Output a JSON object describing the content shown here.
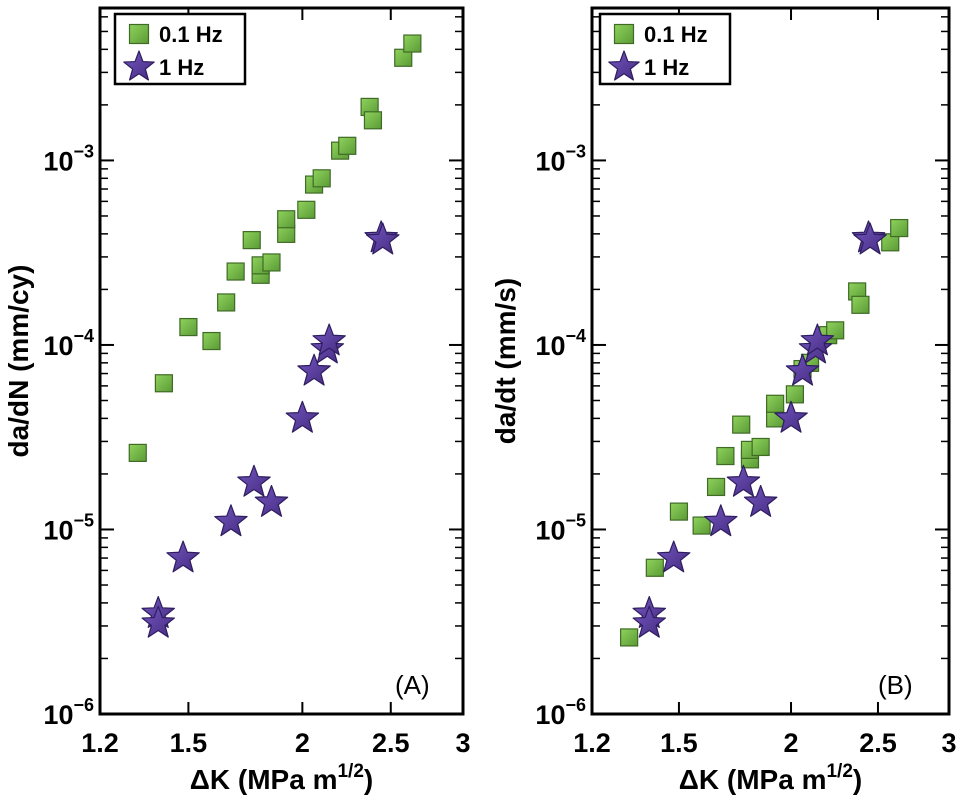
{
  "colors": {
    "green_fill": "#6fb443",
    "green_edge": "#3f6b26",
    "star_fill": "#5a3d9a",
    "star_edge": "#2e1d5f",
    "axis": "#000000"
  },
  "chart_data": [
    {
      "type": "scatter",
      "panel_label": "(A)",
      "xscale": "log",
      "yscale": "log",
      "xlim": [
        1.2,
        3
      ],
      "ylim": [
        1e-06,
        0.0067
      ],
      "xticks": [
        1.2,
        1.5,
        2,
        2.5,
        3
      ],
      "xtick_labels": [
        "1.2",
        "1.5",
        "2",
        "2.5",
        "3"
      ],
      "ytick_labels": [
        {
          "value": 1e-06,
          "base": "10",
          "exp": "−6"
        },
        {
          "value": 1e-05,
          "base": "10",
          "exp": "−5"
        },
        {
          "value": 0.0001,
          "base": "10",
          "exp": "−4"
        },
        {
          "value": 0.001,
          "base": "10",
          "exp": "−3"
        }
      ],
      "xlabel": {
        "prefix": "ΔK (MPa m",
        "sup": "1/2",
        "suffix": ")"
      },
      "ylabel": "da/dN (mm/cy)",
      "legend": [
        {
          "label": "0.1 Hz",
          "marker": "square"
        },
        {
          "label": "1 Hz",
          "marker": "star"
        }
      ],
      "series": [
        {
          "name": "0.1 Hz",
          "marker": "square",
          "points": [
            [
              1.32,
              2.6e-05
            ],
            [
              1.41,
              6.2e-05
            ],
            [
              1.5,
              0.000125
            ],
            [
              1.59,
              0.000105
            ],
            [
              1.65,
              0.00017
            ],
            [
              1.69,
              0.00025
            ],
            [
              1.76,
              0.00037
            ],
            [
              1.8,
              0.00024
            ],
            [
              1.8,
              0.00027
            ],
            [
              1.85,
              0.00028
            ],
            [
              1.92,
              0.0004
            ],
            [
              1.92,
              0.00048
            ],
            [
              2.02,
              0.00054
            ],
            [
              2.06,
              0.00074
            ],
            [
              2.1,
              0.0008
            ],
            [
              2.2,
              0.00113
            ],
            [
              2.24,
              0.0012
            ],
            [
              2.37,
              0.00195
            ],
            [
              2.39,
              0.00165
            ],
            [
              2.58,
              0.0036
            ],
            [
              2.64,
              0.0043
            ]
          ]
        },
        {
          "name": "1 Hz",
          "marker": "star",
          "points": [
            [
              1.39,
              3.5e-06
            ],
            [
              1.39,
              3.1e-06
            ],
            [
              1.48,
              7e-06
            ],
            [
              1.67,
              1.1e-05
            ],
            [
              1.77,
              1.8e-05
            ],
            [
              1.85,
              1.4e-05
            ],
            [
              2.0,
              4e-05
            ],
            [
              2.06,
              7.2e-05
            ],
            [
              2.13,
              9.5e-05
            ],
            [
              2.14,
              0.000105
            ],
            [
              2.44,
              0.00038
            ],
            [
              2.45,
              0.00037
            ]
          ]
        }
      ]
    },
    {
      "type": "scatter",
      "panel_label": "(B)",
      "xscale": "log",
      "yscale": "log",
      "xlim": [
        1.2,
        3
      ],
      "ylim": [
        1e-06,
        0.0067
      ],
      "xticks": [
        1.2,
        1.5,
        2,
        2.5,
        3
      ],
      "xtick_labels": [
        "1.2",
        "1.5",
        "2",
        "2.5",
        "3"
      ],
      "ytick_labels": [
        {
          "value": 1e-06,
          "base": "10",
          "exp": "−6"
        },
        {
          "value": 1e-05,
          "base": "10",
          "exp": "−5"
        },
        {
          "value": 0.0001,
          "base": "10",
          "exp": "−4"
        },
        {
          "value": 0.001,
          "base": "10",
          "exp": "−3"
        }
      ],
      "xlabel": {
        "prefix": "ΔK (MPa m",
        "sup": "1/2",
        "suffix": ")"
      },
      "ylabel": "da/dt (mm/s)",
      "legend": [
        {
          "label": "0.1 Hz",
          "marker": "square"
        },
        {
          "label": "1 Hz",
          "marker": "star"
        }
      ],
      "series": [
        {
          "name": "0.1 Hz",
          "marker": "square",
          "points": [
            [
              1.32,
              2.6e-06
            ],
            [
              1.41,
              6.2e-06
            ],
            [
              1.5,
              1.25e-05
            ],
            [
              1.59,
              1.05e-05
            ],
            [
              1.65,
              1.7e-05
            ],
            [
              1.69,
              2.5e-05
            ],
            [
              1.76,
              3.7e-05
            ],
            [
              1.8,
              2.4e-05
            ],
            [
              1.8,
              2.7e-05
            ],
            [
              1.85,
              2.8e-05
            ],
            [
              1.92,
              4e-05
            ],
            [
              1.92,
              4.8e-05
            ],
            [
              2.02,
              5.4e-05
            ],
            [
              2.06,
              7.4e-05
            ],
            [
              2.1,
              8e-05
            ],
            [
              2.2,
              0.000113
            ],
            [
              2.24,
              0.00012
            ],
            [
              2.37,
              0.000195
            ],
            [
              2.39,
              0.000165
            ],
            [
              2.58,
              0.00036
            ],
            [
              2.64,
              0.00043
            ]
          ]
        },
        {
          "name": "1 Hz",
          "marker": "star",
          "points": [
            [
              1.39,
              3.5e-06
            ],
            [
              1.39,
              3.1e-06
            ],
            [
              1.48,
              7e-06
            ],
            [
              1.67,
              1.1e-05
            ],
            [
              1.77,
              1.8e-05
            ],
            [
              1.85,
              1.4e-05
            ],
            [
              2.0,
              4e-05
            ],
            [
              2.06,
              7.2e-05
            ],
            [
              2.13,
              9.5e-05
            ],
            [
              2.14,
              0.000105
            ],
            [
              2.44,
              0.00038
            ],
            [
              2.45,
              0.00037
            ]
          ]
        }
      ]
    }
  ]
}
